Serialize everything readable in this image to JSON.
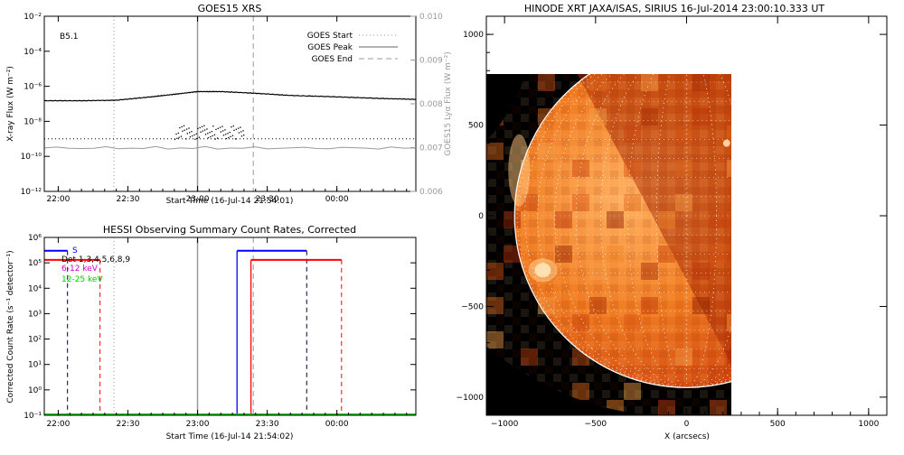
{
  "colors": {
    "axis": "#000000",
    "goes_primary": "#000000",
    "goes_secondary": "#999999",
    "marker_gray": "#999999",
    "blue": "#0000ff",
    "red": "#ff0000",
    "magenta": "#cc00cc",
    "green": "#00cc00",
    "solar_dark": "#000000",
    "solar_edge": "#ffffff"
  },
  "chart_data": [
    {
      "id": "goes",
      "type": "line",
      "title": "GOES15 XRS",
      "xlabel": "Start Time (16-Jul-14 21:54:01)",
      "ylabel": "X-ray Flux (W m⁻²)",
      "y2label": "GOES15 Lyα Flux (W m⁻²)",
      "annotation": "B5.1",
      "x_ticks": [
        "22:00",
        "22:30",
        "23:00",
        "23:30",
        "00:00"
      ],
      "x_tick_minutes": [
        360,
        390,
        420,
        450,
        480
      ],
      "xlim_minutes": [
        354,
        514
      ],
      "y_log": true,
      "ylim": [
        1e-12,
        0.01
      ],
      "y_ticks": [
        "10⁻¹²",
        "10⁻¹⁰",
        "10⁻⁸",
        "10⁻⁶",
        "10⁻⁴",
        "10⁻²"
      ],
      "y_tick_values": [
        1e-12,
        1e-10,
        1e-08,
        1e-06,
        0.0001,
        0.01
      ],
      "y2_ticks": [
        "0.006",
        "0.007",
        "0.008",
        "0.009",
        "0.010"
      ],
      "y2lim": [
        0.006,
        0.01
      ],
      "legend": {
        "placement": "top-right",
        "items": [
          {
            "label": "GOES Start",
            "style": "dotted"
          },
          {
            "label": "GOES Peak",
            "style": "solid"
          },
          {
            "label": "GOES End",
            "style": "dashed"
          }
        ]
      },
      "markers_minutes": {
        "start": 384,
        "peak": 420,
        "end": 444
      },
      "threshold_level": 1e-09,
      "series": [
        {
          "x": [
            354,
            370,
            385,
            400,
            410,
            420,
            430,
            445,
            460,
            480,
            500,
            514
          ],
          "y": [
            1.5e-07,
            1.5e-07,
            1.6e-07,
            2.5e-07,
            3.5e-07,
            5e-07,
            5e-07,
            4e-07,
            3e-07,
            2.5e-07,
            2e-07,
            1.8e-07
          ]
        },
        {
          "x": [
            354,
            514
          ],
          "y": [
            3e-10,
            3e-10
          ]
        }
      ],
      "noise_burst": {
        "x_from": 410,
        "x_to": 440,
        "ylog_from": -9,
        "ylog_to": -8.2
      }
    },
    {
      "id": "hessi",
      "type": "line",
      "title": "HESSI Observing Summary Count Rates, Corrected",
      "xlabel": "Start Time (16-Jul-14 21:54:02)",
      "ylabel": "Corrected Count Rate (s⁻¹ detector⁻¹)",
      "x_ticks": [
        "22:00",
        "22:30",
        "23:00",
        "23:30",
        "00:00"
      ],
      "x_tick_minutes": [
        360,
        390,
        420,
        450,
        480
      ],
      "xlim_minutes": [
        354,
        514
      ],
      "y_log": true,
      "ylim": [
        0.1,
        1000000.0
      ],
      "y_ticks": [
        "10⁻¹",
        "10⁰",
        "10¹",
        "10²",
        "10³",
        "10⁴",
        "10⁵",
        "10⁶"
      ],
      "y_tick_values": [
        0.1,
        1,
        10,
        100,
        1000,
        10000,
        100000,
        1000000
      ],
      "legend": {
        "placement": "top-left",
        "items": [
          {
            "label": "S",
            "color": "blue"
          },
          {
            "label": "Det 1,3,4,5,6,8,9",
            "color": "black"
          },
          {
            "label": "6-12 keV",
            "color": "magenta"
          },
          {
            "label": "12-25 keV",
            "color": "green"
          }
        ]
      },
      "goes_markers_minutes": {
        "start": 384,
        "peak": 420,
        "end": 444
      },
      "blue_segments": [
        [
          354,
          364,
          300000.0
        ],
        [
          437,
          467,
          300000.0
        ]
      ],
      "red_segments": [
        [
          354,
          378,
          130000.0
        ],
        [
          443,
          482,
          130000.0
        ]
      ],
      "dashed_blue_minutes": [
        364,
        467
      ],
      "dashed_red_minutes": [
        378,
        482
      ],
      "solid_blue_minutes": [
        437
      ],
      "solid_red_minutes": [
        443
      ],
      "green_level": 0.1
    },
    {
      "id": "xrt",
      "type": "heatmap",
      "title": "HINODE XRT JAXA/ISAS, SIRIUS 16-Jul-2014 23:00:10.333 UT",
      "xlabel": "X (arcsecs)",
      "x_ticks": [
        "−1000",
        "−500",
        "0",
        "500",
        "1000"
      ],
      "x_tick_values": [
        -1000,
        -500,
        0,
        500,
        1000
      ],
      "y_ticks": [
        "−1000",
        "−500",
        "0",
        "500",
        "1000"
      ],
      "y_tick_values": [
        -1000,
        -500,
        0,
        500,
        1000
      ],
      "xlim": [
        -1100,
        1100
      ],
      "ylim": [
        -1100,
        1100
      ],
      "image_extent": {
        "x": [
          -1100,
          230
        ],
        "y": [
          -1100,
          780
        ]
      },
      "limb_radius": 945,
      "grid": "dotted heliographic"
    }
  ]
}
